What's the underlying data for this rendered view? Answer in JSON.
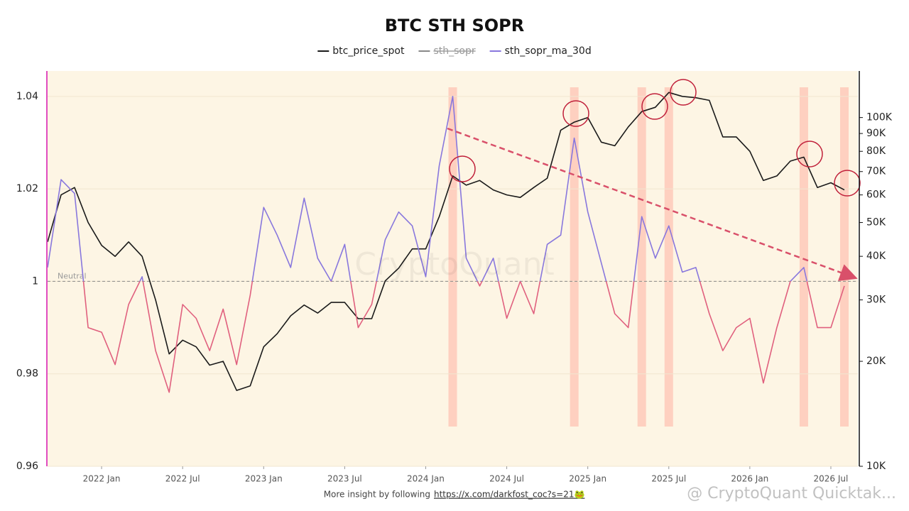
{
  "chart_data": {
    "type": "line",
    "title": "BTC STH SOPR",
    "x": [
      "2021-09",
      "2021-10",
      "2021-11",
      "2021-12",
      "2022-01",
      "2022-02",
      "2022-03",
      "2022-04",
      "2022-05",
      "2022-06",
      "2022-07",
      "2022-08",
      "2022-09",
      "2022-10",
      "2022-11",
      "2022-12",
      "2023-01",
      "2023-02",
      "2023-03",
      "2023-04",
      "2023-05",
      "2023-06",
      "2023-07",
      "2023-08",
      "2023-09",
      "2023-10",
      "2023-11",
      "2023-12",
      "2024-01",
      "2024-02",
      "2024-03",
      "2024-04",
      "2024-05",
      "2024-06",
      "2024-07",
      "2024-08",
      "2024-09",
      "2024-10",
      "2024-11",
      "2024-12",
      "2025-01",
      "2025-02",
      "2025-03",
      "2025-04",
      "2025-05",
      "2025-06",
      "2025-07",
      "2025-08",
      "2025-09",
      "2025-10",
      "2025-11",
      "2025-12",
      "2026-01",
      "2026-02",
      "2026-03",
      "2026-04",
      "2026-05",
      "2026-06",
      "2026-07",
      "2026-08"
    ],
    "xlim": [
      "2021-09",
      "2026-09"
    ],
    "xticks": [
      {
        "value": "2022-01",
        "label": "2022 Jan"
      },
      {
        "value": "2022-07",
        "label": "2022 Jul"
      },
      {
        "value": "2023-01",
        "label": "2023 Jan"
      },
      {
        "value": "2023-07",
        "label": "2023 Jul"
      },
      {
        "value": "2024-01",
        "label": "2024 Jan"
      },
      {
        "value": "2024-07",
        "label": "2024 Jul"
      },
      {
        "value": "2025-01",
        "label": "2025 Jan"
      },
      {
        "value": "2025-07",
        "label": "2025 Jul"
      },
      {
        "value": "2026-01",
        "label": "2026 Jan"
      },
      {
        "value": "2026-07",
        "label": "2026 Jul"
      }
    ],
    "ylim": [
      0.96,
      1.0455
    ],
    "yticks": [
      0.96,
      0.98,
      1,
      1.02,
      1.04
    ],
    "y2lim": [
      10000,
      136000
    ],
    "y2scale": "log",
    "y2ticks": [
      {
        "value": 10000,
        "label": "10K"
      },
      {
        "value": 20000,
        "label": "20K"
      },
      {
        "value": 30000,
        "label": "30K"
      },
      {
        "value": 40000,
        "label": "40K"
      },
      {
        "value": 50000,
        "label": "50K"
      },
      {
        "value": 60000,
        "label": "60K"
      },
      {
        "value": 70000,
        "label": "70K"
      },
      {
        "value": 80000,
        "label": "80K"
      },
      {
        "value": 90000,
        "label": "90K"
      },
      {
        "value": 100000,
        "label": "100K"
      }
    ],
    "grid": true,
    "reference_line": {
      "value": 1,
      "label": "Neutral"
    },
    "highlights": [
      "2024-03",
      "2024-12",
      "2025-05",
      "2025-07",
      "2026-05",
      "2026-08"
    ],
    "series": [
      {
        "name": "btc_price_spot",
        "color": "#1a1a1a",
        "axis": "y2",
        "visible": true,
        "values": [
          44000,
          60000,
          63000,
          50000,
          43000,
          40000,
          44000,
          40000,
          30000,
          21000,
          23000,
          22000,
          19500,
          20000,
          16500,
          17000,
          22000,
          24000,
          27000,
          29000,
          27500,
          29500,
          29500,
          26500,
          26500,
          34000,
          37000,
          42000,
          42000,
          52000,
          68000,
          64000,
          66000,
          62000,
          60000,
          59000,
          63000,
          67000,
          92000,
          97000,
          100000,
          85000,
          83000,
          94000,
          104000,
          107000,
          118000,
          115000,
          114000,
          112000,
          88000,
          88000,
          80000,
          66000,
          68000,
          75000,
          77000,
          63000,
          65000,
          62000
        ]
      },
      {
        "name": "sth_sopr",
        "color": "#888888",
        "visible": false
      },
      {
        "name": "sth_sopr_ma_30d",
        "color": "#8877dd",
        "negative_color": "#e0607e",
        "visible": true,
        "values": [
          1.003,
          1.022,
          1.019,
          0.99,
          0.989,
          0.982,
          0.995,
          1.001,
          0.985,
          0.976,
          0.995,
          0.992,
          0.985,
          0.994,
          0.982,
          0.997,
          1.016,
          1.01,
          1.003,
          1.018,
          1.005,
          1,
          1.008,
          0.99,
          0.995,
          1.009,
          1.015,
          1.012,
          1.001,
          1.025,
          1.04,
          1.005,
          0.999,
          1.005,
          0.992,
          1,
          0.993,
          1.008,
          1.01,
          1.031,
          1.015,
          1.004,
          0.993,
          0.99,
          1.014,
          1.005,
          1.012,
          1.002,
          1.003,
          0.993,
          0.985,
          0.99,
          0.992,
          0.978,
          0.99,
          1,
          1.003,
          0.99,
          0.99,
          0.999
        ]
      }
    ]
  },
  "watermark": "CryptoQuant",
  "corner_watermark": "@ CryptoQuant Quicktak...",
  "footer": {
    "text": "More insight by following",
    "link": "https://x.com/darkfost_coc?s=21🐸"
  }
}
